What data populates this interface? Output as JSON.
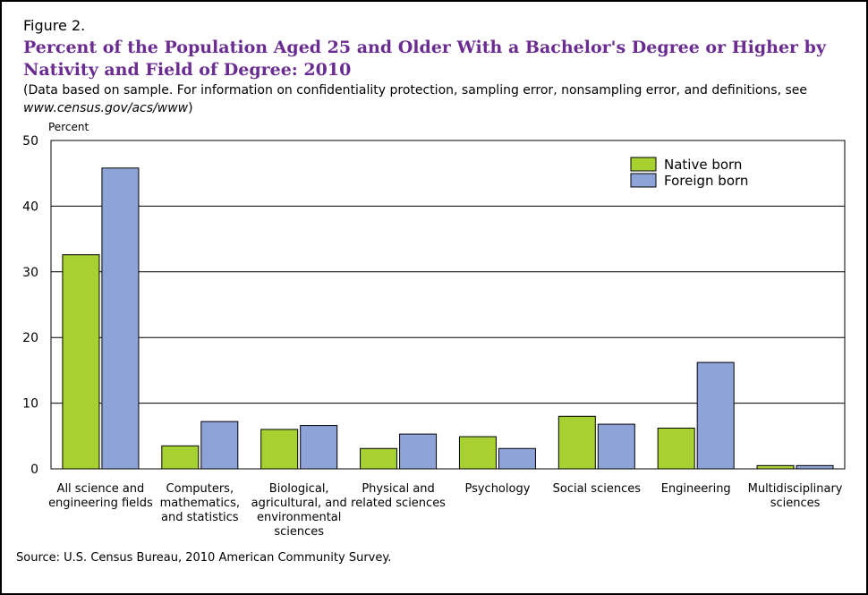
{
  "figure_label": "Figure 2.",
  "title": "Percent of the Population Aged 25 and Older With a Bachelor's Degree or Higher by Nativity and Field of Degree: 2010",
  "subtitle_part1": "(Data based on sample. For information on confidentiality protection, sampling error, nonsampling error, and definitions, see ",
  "subtitle_link": "www.census.gov/acs/www",
  "subtitle_part2": ")",
  "source": "Source: U.S. Census Bureau, 2010 American Community Survey.",
  "colors": {
    "native": "#a7d130",
    "foreign": "#8ea3d8",
    "title": "#6a2c91"
  },
  "chart_data": {
    "type": "bar",
    "ylabel": "Percent",
    "ylim": [
      0,
      50
    ],
    "yticks": [
      0,
      10,
      20,
      30,
      40,
      50
    ],
    "grid": true,
    "legend_position": "top-right",
    "categories": [
      [
        "All science and",
        "engineering fields"
      ],
      [
        "Computers,",
        "mathematics,",
        "and statistics"
      ],
      [
        "Biological,",
        "agricultural, and",
        "environmental",
        "sciences"
      ],
      [
        "Physical and",
        "related sciences"
      ],
      [
        "Psychology"
      ],
      [
        "Social sciences"
      ],
      [
        "Engineering"
      ],
      [
        "Multidisciplinary",
        "sciences"
      ]
    ],
    "series": [
      {
        "name": "Native born",
        "values": [
          32.6,
          3.5,
          6.0,
          3.1,
          4.9,
          8.0,
          6.2,
          0.5
        ]
      },
      {
        "name": "Foreign born",
        "values": [
          45.8,
          7.2,
          6.6,
          5.3,
          3.1,
          6.8,
          16.2,
          0.5
        ]
      }
    ]
  }
}
